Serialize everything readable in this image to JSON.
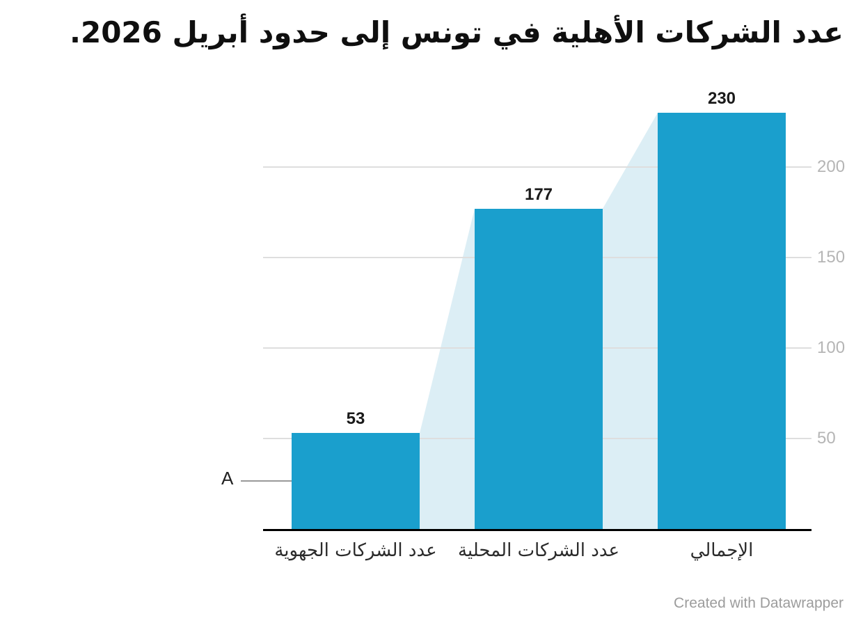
{
  "title": "عدد الشركات الأهلية في تونس إلى حدود أبريل 2026.",
  "footer": "Created with Datawrapper",
  "annotation": {
    "label": "A"
  },
  "colors": {
    "bar": "#1a9fcd",
    "connector_band": "#dceef5",
    "gridline": "#dedede",
    "axis_line": "#000000",
    "y_tick_label": "#b5b5b5",
    "value_label": "#1a1a1a",
    "category_label": "#2b2b2b",
    "annotation_text": "#222222",
    "annotation_line": "#999999",
    "footer_text": "#9c9c9c",
    "background": "#ffffff"
  },
  "chart_data": {
    "type": "bar",
    "title": "عدد الشركات الأهلية في تونس إلى حدود أبريل 2026.",
    "categories": [
      "عدد الشركات الجهوية",
      "عدد الشركات المحلية",
      "الإجمالي"
    ],
    "values": [
      53,
      177,
      230
    ],
    "value_labels": [
      "53",
      "177",
      "230"
    ],
    "xlabel": "",
    "ylabel": "",
    "ylim": [
      0,
      230
    ],
    "yticks": [
      50,
      100,
      150,
      200
    ],
    "ytick_side": "right",
    "grid": "horizontal",
    "legend": "none",
    "connector_band_between_bars": true,
    "annotations": [
      {
        "text": "A",
        "target_category": "عدد الشركات الجهوية"
      }
    ]
  }
}
